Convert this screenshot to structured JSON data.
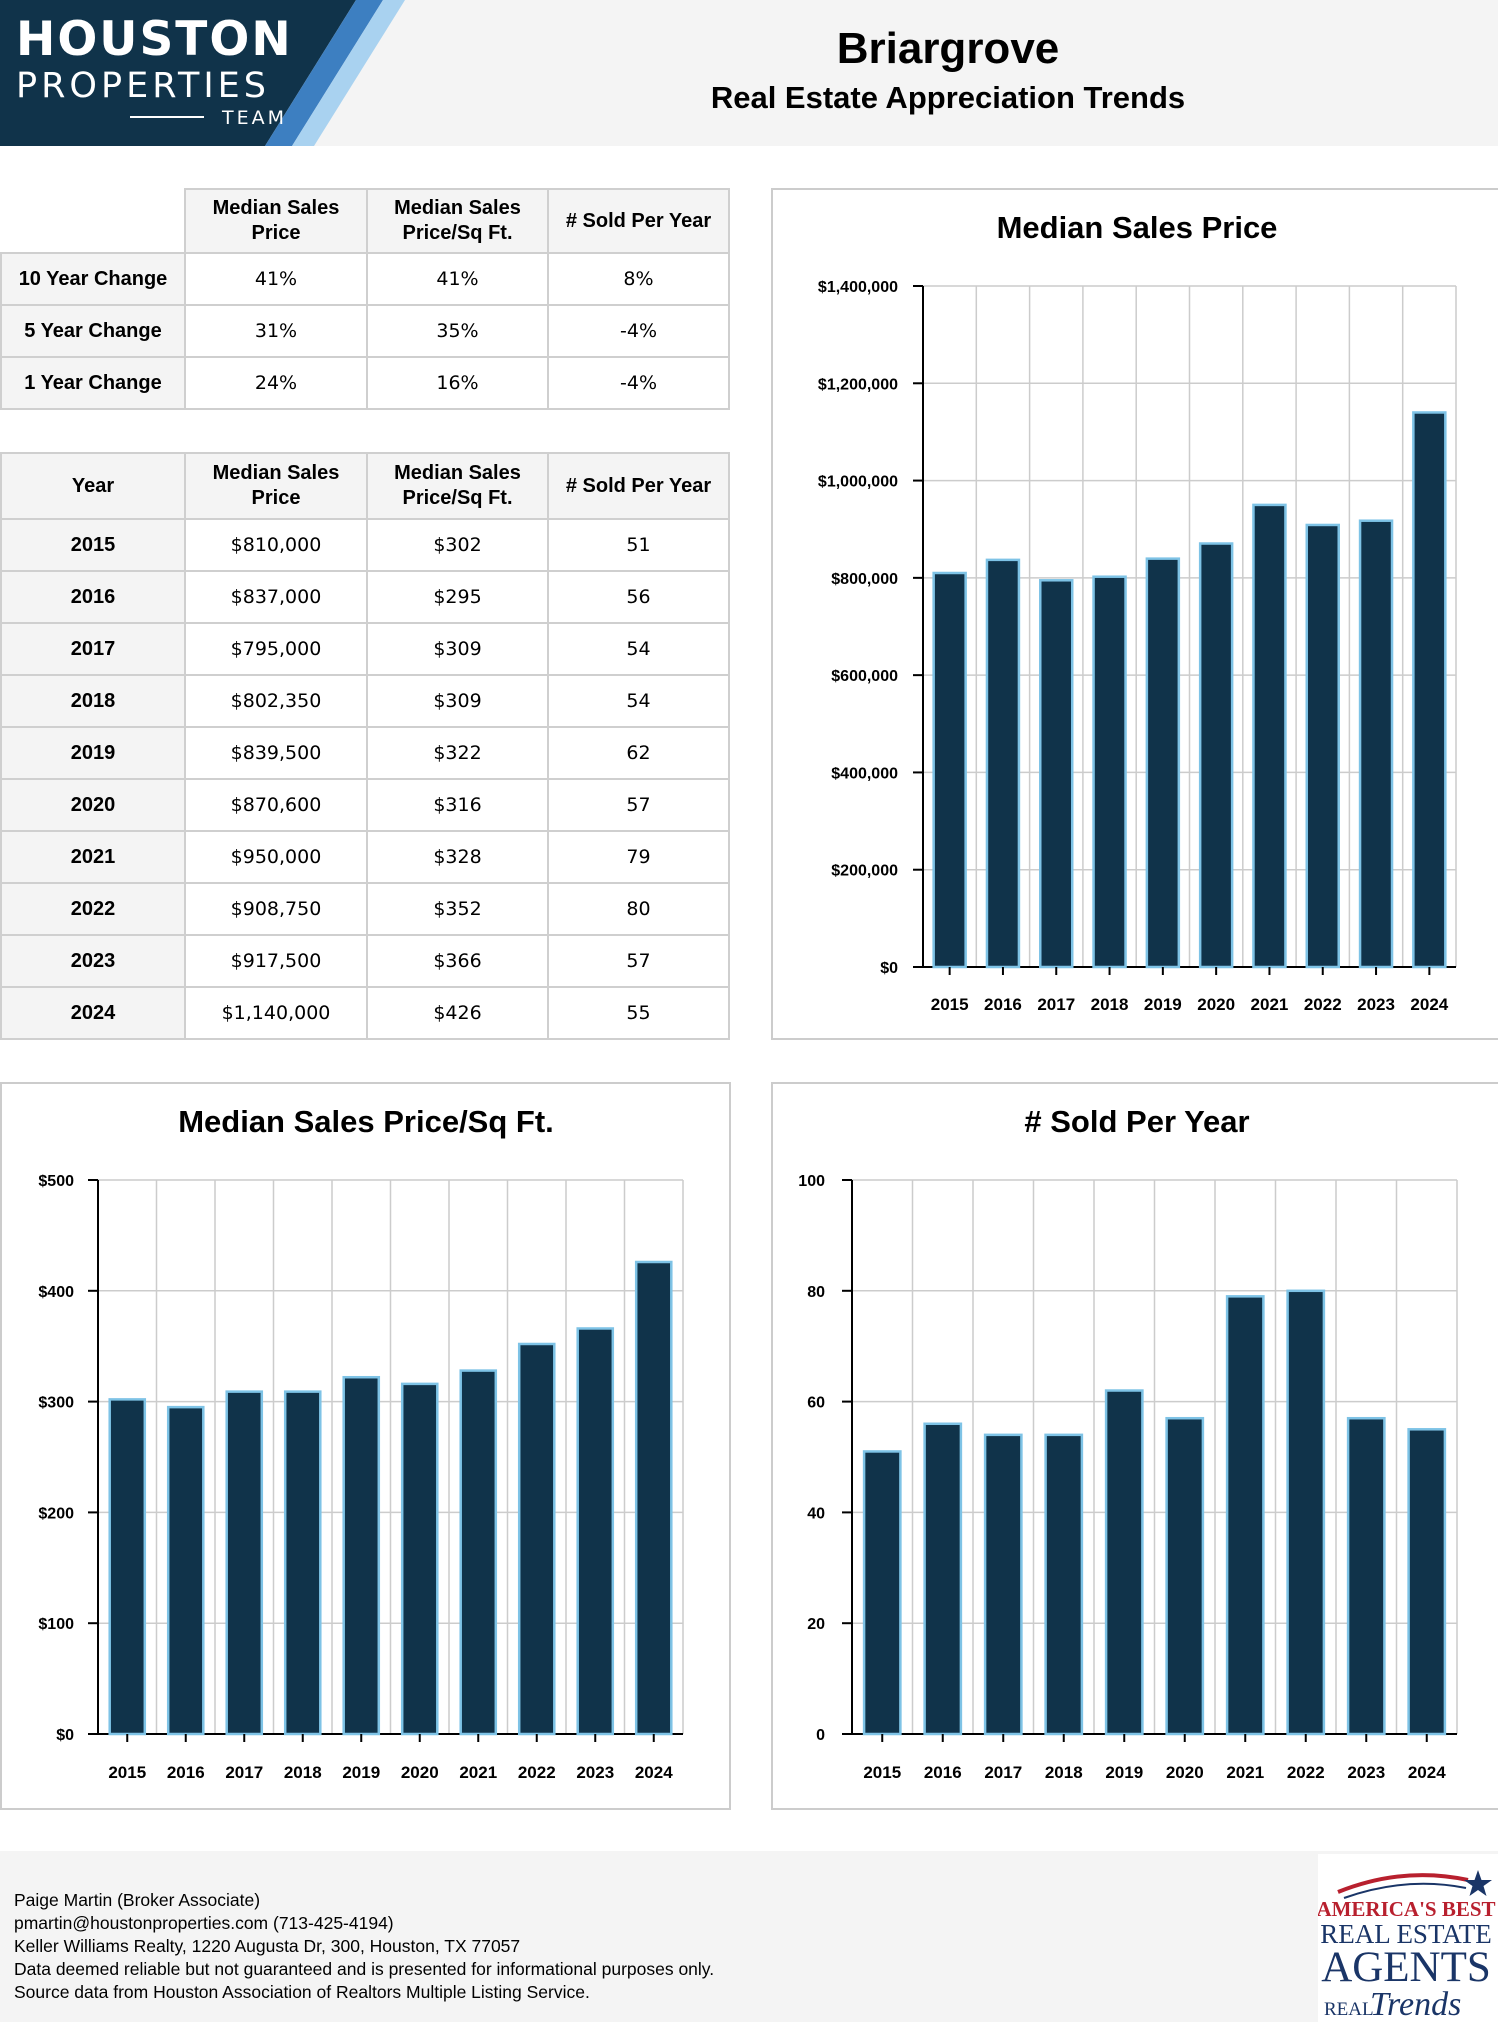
{
  "brand": {
    "line1": "HOUSTON",
    "line2": "PROPERTIES",
    "line3": "TEAM",
    "navy": "#10334a",
    "blue1": "#3d7fc1",
    "blue2": "#a9d2f0"
  },
  "header": {
    "title": "Briargrove",
    "subtitle": "Real Estate Appreciation Trends"
  },
  "change_table": {
    "headers": [
      "Median Sales Price",
      "Median Sales Price/Sq Ft.",
      "# Sold Per Year"
    ],
    "rows": [
      {
        "label": "10 Year Change",
        "price": "41%",
        "sqft": "41%",
        "sold": "8%"
      },
      {
        "label": "5 Year Change",
        "price": "31%",
        "sqft": "35%",
        "sold": "-4%"
      },
      {
        "label": "1 Year Change",
        "price": "24%",
        "sqft": "16%",
        "sold": "-4%"
      }
    ]
  },
  "year_table": {
    "headers": [
      "Year",
      "Median Sales Price",
      "Median Sales Price/Sq Ft.",
      "# Sold Per Year"
    ],
    "rows": [
      {
        "year": "2015",
        "price": "$810,000",
        "sqft": "$302",
        "sold": "51"
      },
      {
        "year": "2016",
        "price": "$837,000",
        "sqft": "$295",
        "sold": "56"
      },
      {
        "year": "2017",
        "price": "$795,000",
        "sqft": "$309",
        "sold": "54"
      },
      {
        "year": "2018",
        "price": "$802,350",
        "sqft": "$309",
        "sold": "54"
      },
      {
        "year": "2019",
        "price": "$839,500",
        "sqft": "$322",
        "sold": "62"
      },
      {
        "year": "2020",
        "price": "$870,600",
        "sqft": "$316",
        "sold": "57"
      },
      {
        "year": "2021",
        "price": "$950,000",
        "sqft": "$328",
        "sold": "79"
      },
      {
        "year": "2022",
        "price": "$908,750",
        "sqft": "$352",
        "sold": "80"
      },
      {
        "year": "2023",
        "price": "$917,500",
        "sqft": "$366",
        "sold": "57"
      },
      {
        "year": "2024",
        "price": "$1,140,000",
        "sqft": "$426",
        "sold": "55"
      }
    ]
  },
  "chart_colors": {
    "bar": "#10334a",
    "bar_outline": "#7ec3e6",
    "grid": "#cccccc",
    "axis": "#000000"
  },
  "chart_data": [
    {
      "type": "bar",
      "title": "Median Sales Price",
      "categories": [
        "2015",
        "2016",
        "2017",
        "2018",
        "2019",
        "2020",
        "2021",
        "2022",
        "2023",
        "2024"
      ],
      "values": [
        810000,
        837000,
        795000,
        802350,
        839500,
        870600,
        950000,
        908750,
        917500,
        1140000
      ],
      "ylim": [
        0,
        1400000
      ],
      "yticks": [
        0,
        200000,
        400000,
        600000,
        800000,
        1000000,
        1200000,
        1400000
      ],
      "ytick_labels": [
        "$0",
        "$200,000",
        "$400,000",
        "$600,000",
        "$800,000",
        "$1,000,000",
        "$1,200,000",
        "$1,400,000"
      ],
      "grid": true
    },
    {
      "type": "bar",
      "title": "Median Sales Price/Sq Ft.",
      "categories": [
        "2015",
        "2016",
        "2017",
        "2018",
        "2019",
        "2020",
        "2021",
        "2022",
        "2023",
        "2024"
      ],
      "values": [
        302,
        295,
        309,
        309,
        322,
        316,
        328,
        352,
        366,
        426
      ],
      "ylim": [
        0,
        500
      ],
      "yticks": [
        0,
        100,
        200,
        300,
        400,
        500
      ],
      "ytick_labels": [
        "$0",
        "$100",
        "$200",
        "$300",
        "$400",
        "$500"
      ],
      "grid": true
    },
    {
      "type": "bar",
      "title": "# Sold Per Year",
      "categories": [
        "2015",
        "2016",
        "2017",
        "2018",
        "2019",
        "2020",
        "2021",
        "2022",
        "2023",
        "2024"
      ],
      "values": [
        51,
        56,
        54,
        54,
        62,
        57,
        79,
        80,
        57,
        55
      ],
      "ylim": [
        0,
        100
      ],
      "yticks": [
        0,
        20,
        40,
        60,
        80,
        100
      ],
      "ytick_labels": [
        "0",
        "20",
        "40",
        "60",
        "80",
        "100"
      ],
      "grid": true
    }
  ],
  "footer": {
    "lines": [
      "Paige Martin (Broker Associate)",
      "pmartin@houstonproperties.com (713-425-4194)",
      "Keller Williams Realty, 1220 Augusta Dr, 300, Houston, TX 77057",
      "Data deemed reliable but not guaranteed and is presented for informational purposes only.",
      "Source data from Houston Association of Realtors Multiple Listing Service."
    ]
  },
  "badge": {
    "line1": "AMERICA'S BEST",
    "line2": "REAL ESTATE",
    "line3": "AGENTS",
    "line4": "REAL",
    "line5": "Trends",
    "red": "#b8202e",
    "navy": "#1a3567"
  }
}
